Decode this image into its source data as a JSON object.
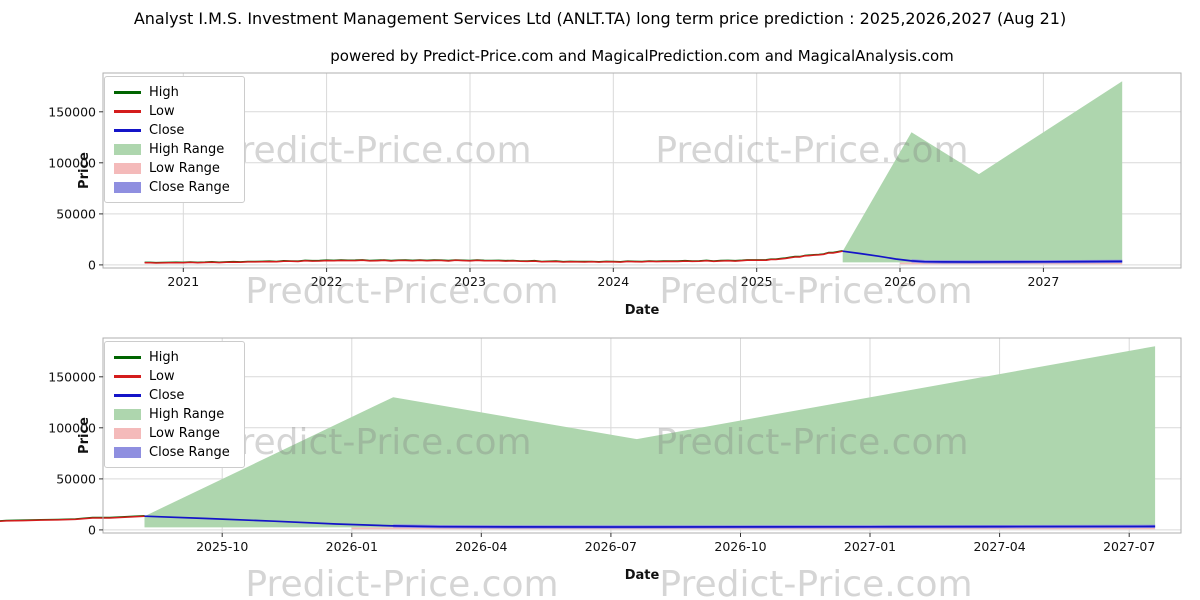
{
  "header": {
    "title": "Analyst I.M.S. Investment Management Services Ltd (ANLT.TA) long term price prediction : 2025,2026,2027 (Aug 21)",
    "subtitle": "powered by Predict-Price.com and MagicalPrediction.com and MagicalAnalysis.com"
  },
  "watermark": "Predict-Price.com",
  "colors": {
    "high": "#006400",
    "low": "#d41c1c",
    "close": "#1414c8",
    "high_range": "#aed6ae",
    "low_range": "#f4baba",
    "close_range": "#8f8fe0",
    "grid": "#d9d9d9",
    "spine": "#afafaf"
  },
  "legend": [
    {
      "label": "High",
      "type": "line",
      "color_key": "high"
    },
    {
      "label": "Low",
      "type": "line",
      "color_key": "low"
    },
    {
      "label": "Close",
      "type": "line",
      "color_key": "close"
    },
    {
      "label": "High Range",
      "type": "patch",
      "color_key": "high_range"
    },
    {
      "label": "Low Range",
      "type": "patch",
      "color_key": "low_range"
    },
    {
      "label": "Close Range",
      "type": "patch",
      "color_key": "close_range"
    }
  ],
  "chart_data": [
    {
      "type": "line",
      "xlabel": "Date",
      "ylabel": "Price",
      "xlim": [
        2020.44,
        2027.96
      ],
      "ylim": [
        -3000,
        188000
      ],
      "x_ticks": [
        {
          "v": 2021,
          "label": "2021"
        },
        {
          "v": 2022,
          "label": "2022"
        },
        {
          "v": 2023,
          "label": "2023"
        },
        {
          "v": 2024,
          "label": "2024"
        },
        {
          "v": 2025,
          "label": "2025"
        },
        {
          "v": 2026,
          "label": "2026"
        },
        {
          "v": 2027,
          "label": "2027"
        }
      ],
      "y_ticks": [
        {
          "v": 0,
          "label": "0"
        },
        {
          "v": 50000,
          "label": "50000"
        },
        {
          "v": 100000,
          "label": "100000"
        },
        {
          "v": 150000,
          "label": "150000"
        }
      ]
    },
    {
      "type": "line",
      "xlabel": "Date",
      "ylabel": "Price",
      "xlim": [
        2025.52,
        2027.6
      ],
      "ylim": [
        -3000,
        188000
      ],
      "x_ticks": [
        {
          "v": 2025.75,
          "label": "2025-10"
        },
        {
          "v": 2026.0,
          "label": "2026-01"
        },
        {
          "v": 2026.25,
          "label": "2026-04"
        },
        {
          "v": 2026.5,
          "label": "2026-07"
        },
        {
          "v": 2026.75,
          "label": "2026-10"
        },
        {
          "v": 2027.0,
          "label": "2027-01"
        },
        {
          "v": 2027.25,
          "label": "2027-04"
        },
        {
          "v": 2027.5,
          "label": "2027-07"
        }
      ],
      "y_ticks": [
        {
          "v": 0,
          "label": "0"
        },
        {
          "v": 50000,
          "label": "50000"
        },
        {
          "v": 100000,
          "label": "100000"
        },
        {
          "v": 150000,
          "label": "150000"
        }
      ]
    }
  ],
  "series": {
    "low_hist": [
      [
        2020.73,
        2100
      ],
      [
        2020.85,
        2000
      ],
      [
        2021.0,
        2150
      ],
      [
        2021.15,
        2350
      ],
      [
        2021.3,
        2600
      ],
      [
        2021.45,
        3000
      ],
      [
        2021.6,
        3300
      ],
      [
        2021.75,
        3550
      ],
      [
        2021.9,
        3800
      ],
      [
        2022.05,
        4100
      ],
      [
        2022.2,
        4250
      ],
      [
        2022.35,
        4150
      ],
      [
        2022.5,
        4300
      ],
      [
        2022.65,
        4400
      ],
      [
        2022.8,
        4300
      ],
      [
        2022.95,
        4200
      ],
      [
        2023.1,
        4050
      ],
      [
        2023.25,
        3800
      ],
      [
        2023.4,
        3500
      ],
      [
        2023.55,
        3250
      ],
      [
        2023.7,
        3100
      ],
      [
        2023.85,
        3050
      ],
      [
        2024.0,
        3000
      ],
      [
        2024.15,
        3100
      ],
      [
        2024.3,
        3250
      ],
      [
        2024.45,
        3400
      ],
      [
        2024.6,
        3650
      ],
      [
        2024.75,
        3900
      ],
      [
        2024.9,
        4200
      ],
      [
        2025.0,
        4600
      ],
      [
        2025.1,
        5300
      ],
      [
        2025.2,
        6300
      ],
      [
        2025.3,
        7800
      ],
      [
        2025.4,
        9600
      ],
      [
        2025.5,
        11700
      ],
      [
        2025.6,
        13500
      ]
    ],
    "high_hist_offset": 450,
    "close_pred": [
      [
        2025.6,
        13500
      ],
      [
        2025.72,
        11200
      ],
      [
        2025.85,
        8600
      ],
      [
        2025.97,
        5800
      ],
      [
        2026.08,
        4000
      ],
      [
        2026.17,
        3200
      ],
      [
        2026.3,
        2950
      ],
      [
        2026.5,
        2900
      ],
      [
        2026.75,
        3000
      ],
      [
        2027.0,
        3100
      ],
      [
        2027.25,
        3250
      ],
      [
        2027.55,
        3500
      ]
    ],
    "high_range_top": [
      [
        2025.6,
        13500
      ],
      [
        2026.08,
        130000
      ],
      [
        2026.55,
        89000
      ],
      [
        2027.55,
        180000
      ]
    ],
    "range_floor": 2500,
    "low_range": {
      "start_x": 2026.0,
      "top": 2400,
      "bottom": 700
    },
    "close_range": {
      "start_x": 2026.0,
      "half_width": 1600
    },
    "end_x": 2027.55
  }
}
